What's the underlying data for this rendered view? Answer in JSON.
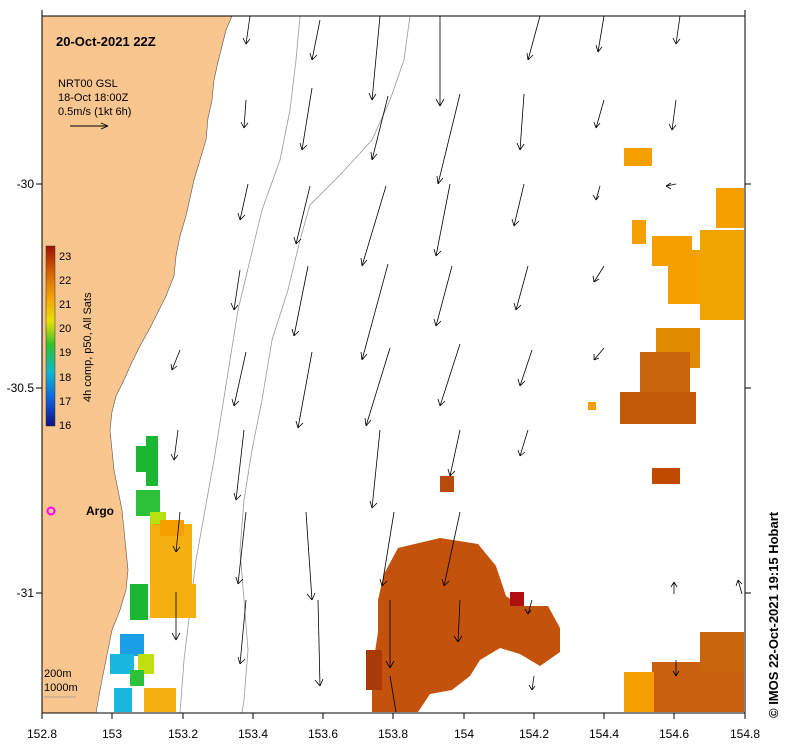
{
  "map": {
    "title": "20-Oct-2021 22Z",
    "legend": {
      "product": "NRT00 GSL",
      "date": "18-Oct 18:00Z",
      "scale": "0.5m/s (1kt 6h)"
    },
    "colorbar": {
      "label": "4h comp, p50, All Sats",
      "ticks": [
        "23",
        "22",
        "21",
        "20",
        "19",
        "18",
        "17",
        "16"
      ]
    },
    "x_ticks": [
      "152.8",
      "153",
      "153.2",
      "153.4",
      "153.6",
      "153.8",
      "154",
      "154.2",
      "154.4",
      "154.6",
      "154.8"
    ],
    "y_ticks": [
      "-30",
      "-30.5",
      "-31"
    ],
    "argo_label": "Argo",
    "depth_labels": [
      "200m",
      "1000m"
    ],
    "credit": "© IMOS 22-Oct-2021 19:15 Hobart",
    "colors": {
      "land": "#f9c68f",
      "marker": "#ff00ff",
      "sst_warm": "#c04a00",
      "sst_mid": "#f5a000"
    }
  }
}
